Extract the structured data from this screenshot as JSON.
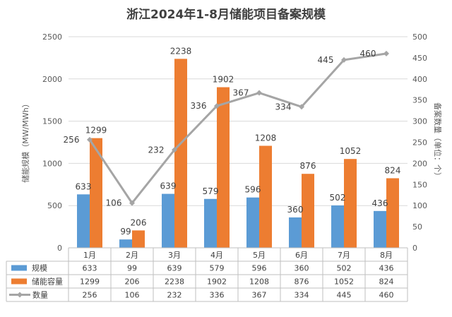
{
  "chart_data": {
    "type": "bar",
    "title": "浙江2024年1-8月储能项目备案规模",
    "categories": [
      "1月",
      "2月",
      "3月",
      "4月",
      "5月",
      "6月",
      "7月",
      "8月"
    ],
    "ylabel": "储能规模（MW/MWh）",
    "y2label": "备案数量（单位：个）",
    "ylim": [
      0,
      2500
    ],
    "y2lim": [
      0,
      500
    ],
    "yticks": [
      0,
      500,
      1000,
      1500,
      2000,
      2500
    ],
    "y2ticks": [
      0,
      50,
      100,
      150,
      200,
      250,
      300,
      350,
      400,
      450,
      500
    ],
    "grid": true,
    "legend": "data-table",
    "series": [
      {
        "name": "规模",
        "type": "bar",
        "axis": "left",
        "color": "#5B9BD5",
        "values": [
          633,
          99,
          639,
          579,
          596,
          360,
          502,
          436
        ]
      },
      {
        "name": "储能容量",
        "type": "bar",
        "axis": "left",
        "color": "#ED7D31",
        "values": [
          1299,
          206,
          2238,
          1902,
          1208,
          876,
          1052,
          824
        ]
      },
      {
        "name": "数量",
        "type": "line",
        "axis": "right",
        "color": "#A5A5A5",
        "values": [
          256,
          106,
          232,
          336,
          367,
          334,
          445,
          460
        ]
      }
    ]
  }
}
